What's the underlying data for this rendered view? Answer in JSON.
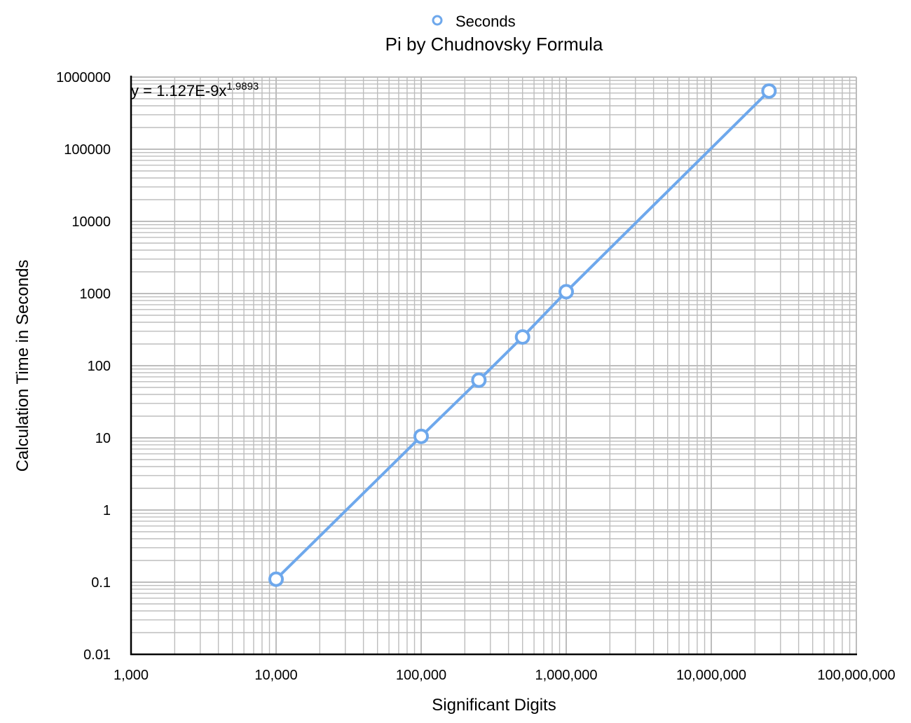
{
  "chart_data": {
    "type": "scatter",
    "title": "Pi by Chudnovsky Formula",
    "xlabel": "Significant Digits",
    "ylabel": "Calculation Time in Seconds",
    "x_scale": "log",
    "y_scale": "log",
    "xlim": [
      1000,
      100000000
    ],
    "ylim": [
      0.01,
      1000000
    ],
    "x_ticks": [
      "1,000",
      "10,000",
      "100,000",
      "1,000,000",
      "10,000,000",
      "100,000,000"
    ],
    "y_ticks": [
      "0.01",
      "0.1",
      "1",
      "10",
      "100",
      "1000",
      "10000",
      "100000",
      "1000000"
    ],
    "grid": true,
    "legend_position": "top-center",
    "series": [
      {
        "name": "Seconds",
        "color": "#6ea8ec",
        "marker": "circle-open",
        "x": [
          10000,
          100000,
          250000,
          500000,
          1000000,
          25000000
        ],
        "y": [
          0.11,
          10.5,
          63,
          250,
          1060,
          640000
        ]
      }
    ],
    "trendline": {
      "label_prefix": "y = 1.127E-9x",
      "label_exponent": "1.9893"
    }
  }
}
